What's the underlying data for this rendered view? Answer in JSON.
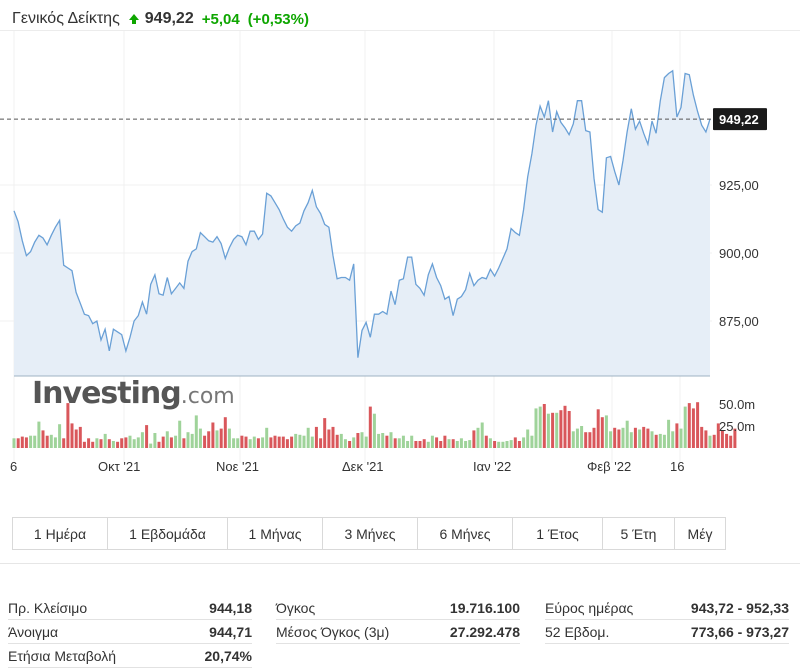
{
  "header": {
    "name": "Γενικός Δείκτης",
    "price": "949,22",
    "change": "+5,04",
    "change_pct": "(+0,53%)",
    "arrow": "arrow-up-icon",
    "positive_color": "#0ea600"
  },
  "logo": {
    "bold": "Investing",
    "light": ".com"
  },
  "chart_data": {
    "type": "line",
    "price_axis": {
      "ticks": [
        875,
        900,
        925
      ],
      "tick_labels": [
        "875,00",
        "900,00",
        "925,00"
      ]
    },
    "current_price": {
      "value": 949.22,
      "label": "949,22"
    },
    "volume_axis": {
      "ticks": [
        25,
        50
      ],
      "tick_labels": [
        "25.0m",
        "50.0m"
      ]
    },
    "x_labels": [
      "6",
      "Οκτ '21",
      "Νοε '21",
      "Δεκ '21",
      "Ιαν '22",
      "Φεβ '22",
      "16"
    ],
    "colors": {
      "line": "#6aa0d6",
      "area": "#e6eef7",
      "up_volume": "#9fd39a",
      "down_volume": "#d9575b",
      "price_tag": "#1a1a1a"
    },
    "series": [
      {
        "values": [
          915.5,
          911.5,
          904.5,
          899,
          900.5,
          904,
          906.5,
          905.5,
          903,
          906.5,
          909.5,
          912,
          895.5,
          894.5,
          893.5,
          885.5,
          881.5,
          877.5,
          877,
          874,
          875,
          868,
          872,
          864,
          872,
          871,
          870,
          864,
          869,
          875,
          877,
          882,
          877.5,
          888.5,
          892,
          885,
          884.5,
          891,
          885,
          887,
          889,
          887,
          897,
          900.5,
          901.5,
          907.5,
          906,
          904.5,
          904,
          906,
          903.5,
          898,
          902,
          905,
          906.5,
          906,
          903,
          908,
          908,
          905,
          907,
          922,
          921,
          918.5,
          916,
          912.5,
          909.5,
          908,
          910,
          911,
          915.5,
          918.5,
          923,
          917,
          914.5,
          910.5,
          909.5,
          899,
          890.5,
          891,
          891,
          890,
          896,
          861.5,
          871.5,
          874.5,
          869,
          877.5,
          877.5,
          878.5,
          877.5,
          886,
          881,
          890,
          890.5,
          898.5,
          898.5,
          888.5,
          887,
          884.5,
          892,
          896,
          891,
          888,
          883,
          884,
          877,
          883,
          884,
          886.5,
          892.5,
          888,
          890,
          891,
          890.5,
          894,
          891.5,
          894.5,
          898,
          901.5,
          909,
          907.5,
          906.5,
          916,
          928,
          936.5,
          947,
          954,
          950,
          956,
          944.5,
          952,
          948,
          946,
          943.5,
          947.5,
          956,
          956,
          945,
          944.5,
          927.5,
          916,
          915,
          935,
          935.5,
          930,
          925,
          934,
          944.5,
          953,
          945.5,
          948.5,
          944,
          940,
          948.5,
          944,
          956,
          964.5,
          966,
          967,
          950,
          953.5,
          966,
          965.5,
          958,
          952,
          947,
          944.5,
          949.22
        ]
      },
      {
        "values": [
          11,
          11,
          13,
          12,
          14,
          14,
          30,
          20,
          14,
          15,
          12,
          27,
          11,
          51,
          28,
          21,
          24,
          7,
          11,
          7,
          11,
          10,
          16,
          10,
          8,
          7,
          11,
          12,
          14,
          10,
          12,
          18,
          26,
          5,
          17,
          7,
          13,
          19,
          12,
          14,
          31,
          11,
          18,
          16,
          37,
          22,
          14,
          19,
          29,
          20,
          22,
          35,
          22,
          11,
          11,
          14,
          13,
          10,
          13,
          11,
          12,
          23,
          12,
          14,
          13,
          13,
          10,
          13,
          16,
          15,
          14,
          23,
          13,
          24,
          11,
          34,
          21,
          24,
          15,
          16,
          10,
          8,
          12,
          17,
          18,
          13,
          47,
          39,
          16,
          17,
          14,
          18,
          11,
          11,
          14,
          8,
          14,
          8,
          8,
          10,
          7,
          14,
          12,
          8,
          14,
          10,
          10,
          8,
          11,
          8,
          9,
          20,
          23,
          29,
          14,
          11,
          8,
          7,
          7,
          8,
          9,
          12,
          8,
          12,
          21,
          14,
          45,
          47,
          50,
          39,
          40,
          40,
          43,
          48,
          42,
          19,
          22,
          25,
          18,
          18,
          23,
          44,
          35,
          37,
          19,
          23,
          21,
          23,
          31,
          18,
          23,
          21,
          24,
          22,
          19,
          15,
          16,
          15,
          32,
          19,
          28,
          22,
          47,
          51,
          45,
          52,
          24,
          20,
          14,
          15,
          28,
          20,
          16,
          14,
          22
        ]
      }
    ]
  },
  "ranges": [
    "1 Ημέρα",
    "1 Εβδομάδα",
    "1 Μήνας",
    "3 Μήνες",
    "6 Μήνες",
    "1 Έτος",
    "5 Έτη",
    "Μέγ"
  ],
  "stats": {
    "col1": [
      {
        "label": "Πρ. Κλείσιμο",
        "value": "944,18"
      },
      {
        "label": "Άνοιγμα",
        "value": "944,71"
      },
      {
        "label": "Ετήσια Μεταβολή",
        "value": "20,74%"
      }
    ],
    "col2": [
      {
        "label": "Όγκος",
        "value": "19.716.100"
      },
      {
        "label": "Μέσος Όγκος (3μ)",
        "value": "27.292.478"
      }
    ],
    "col3": [
      {
        "label": "Εύρος ημέρας",
        "value": "943,72 - 952,33"
      },
      {
        "label": "52 Εβδομ.",
        "value": "773,66 - 973,27"
      }
    ]
  }
}
